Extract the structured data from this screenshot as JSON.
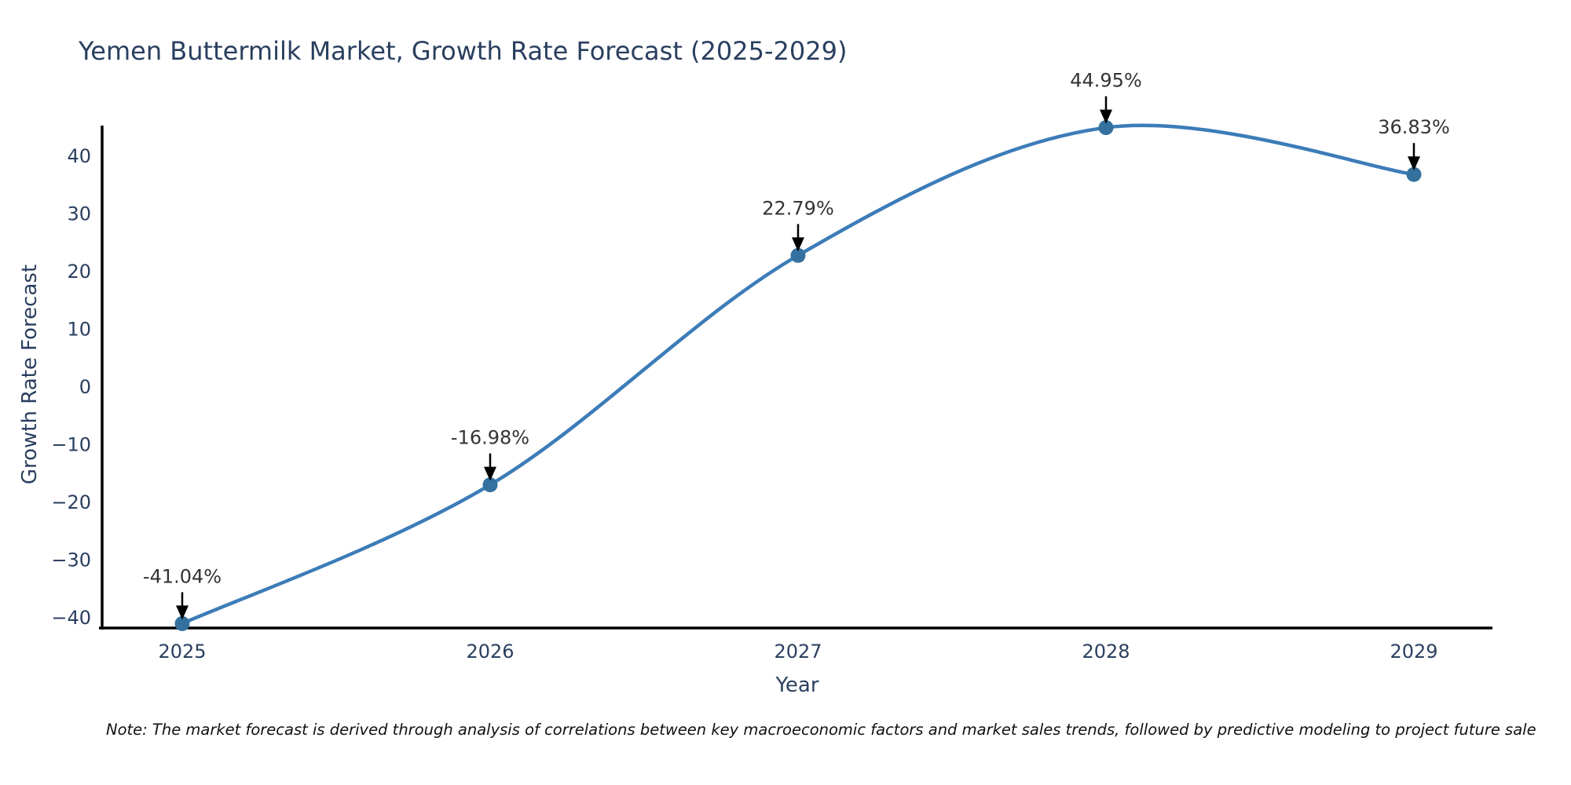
{
  "note": "Note: The market forecast is derived through analysis of correlations between key macroeconomic factors and market sales trends, followed by predictive modeling to project future sale",
  "chart_data": {
    "type": "line",
    "title": "Yemen Buttermilk Market, Growth Rate Forecast (2025-2029)",
    "xlabel": "Year",
    "ylabel": "Growth Rate Forecast",
    "categories": [
      "2025",
      "2026",
      "2027",
      "2028",
      "2029"
    ],
    "values": [
      -41.04,
      -16.98,
      22.79,
      44.95,
      36.83
    ],
    "point_labels": [
      "-41.04%",
      "-16.98%",
      "22.79%",
      "44.95%",
      "36.83%"
    ],
    "yticks": [
      40,
      30,
      20,
      10,
      0,
      -10,
      -20,
      -30,
      -40
    ],
    "ytick_labels": [
      "40",
      "30",
      "20",
      "10",
      "0",
      "−10",
      "−20",
      "−30",
      "−40"
    ],
    "ylim": [
      -41.8,
      45.3
    ],
    "grid": false,
    "legend": "none",
    "line_shape": "spline",
    "marker": "circle",
    "annotation_arrows": true,
    "colors": {
      "line": "#3c7cb8",
      "marker": "#34719e",
      "axis": "#000000",
      "axis_text": "#2a3f5f",
      "annotation_text": "#333333",
      "background": "#ffffff"
    }
  }
}
